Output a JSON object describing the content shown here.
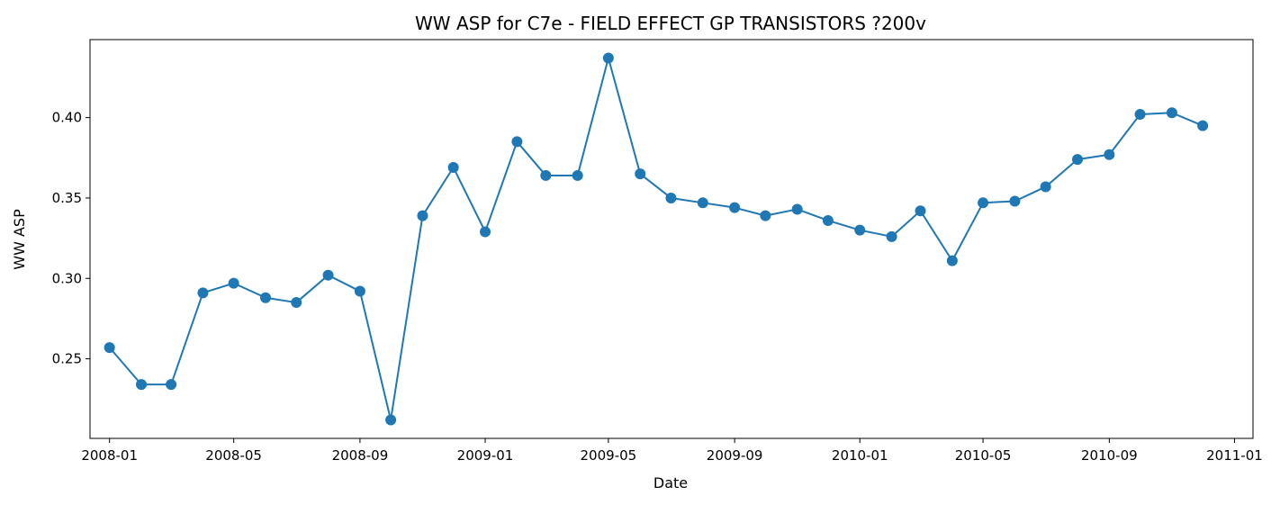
{
  "chart_data": {
    "type": "line",
    "title": "WW ASP for C7e - FIELD EFFECT GP TRANSISTORS ?200v",
    "xlabel": "Date",
    "ylabel": "WW ASP",
    "x": [
      "2008-01",
      "2008-02",
      "2008-03",
      "2008-04",
      "2008-05",
      "2008-06",
      "2008-07",
      "2008-08",
      "2008-09",
      "2008-10",
      "2008-11",
      "2008-12",
      "2009-01",
      "2009-02",
      "2009-03",
      "2009-04",
      "2009-05",
      "2009-06",
      "2009-07",
      "2009-08",
      "2009-09",
      "2009-10",
      "2009-11",
      "2009-12",
      "2010-01",
      "2010-02",
      "2010-03",
      "2010-04",
      "2010-05",
      "2010-06",
      "2010-07",
      "2010-08",
      "2010-09",
      "2010-10",
      "2010-11",
      "2010-12"
    ],
    "series": [
      {
        "values": [
          0.257,
          0.234,
          0.234,
          0.291,
          0.297,
          0.288,
          0.285,
          0.302,
          0.292,
          0.212,
          0.339,
          0.369,
          0.329,
          0.385,
          0.364,
          0.364,
          0.437,
          0.365,
          0.35,
          0.347,
          0.344,
          0.339,
          0.343,
          0.336,
          0.33,
          0.326,
          0.342,
          0.311,
          0.347,
          0.348,
          0.357,
          0.374,
          0.377,
          0.402,
          0.403,
          0.395
        ],
        "color": "#1f77b4"
      }
    ],
    "x_ticks": [
      "2008-01",
      "2008-05",
      "2008-09",
      "2009-01",
      "2009-05",
      "2009-09",
      "2010-01",
      "2010-05",
      "2010-09",
      "2011-01"
    ],
    "y_ticks": [
      "0.25",
      "0.30",
      "0.35",
      "0.40"
    ],
    "xlim": [
      "2007-12-13",
      "2011-01-19"
    ],
    "ylim": [
      0.2005,
      0.4485
    ],
    "grid": false,
    "legend": "none"
  }
}
